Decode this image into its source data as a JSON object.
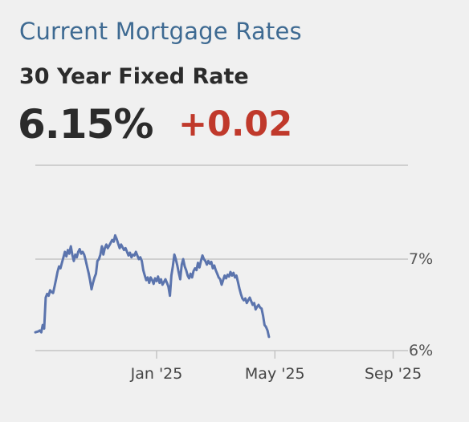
{
  "header": {
    "title": "Current Mortgage Rates",
    "product": "30 Year Fixed Rate",
    "rate": "6.15%",
    "change": "+0.02"
  },
  "colors": {
    "title": "#3e6a92",
    "line": "#5b74ad",
    "change": "#c0392b",
    "grid": "#c4c4c4",
    "background": "#f0f0f0"
  },
  "chart_data": {
    "type": "line",
    "title": "",
    "xlabel": "",
    "ylabel": "",
    "ylim": [
      5.9,
      7.9
    ],
    "grid": true,
    "y_ticks": [
      {
        "value": 6,
        "label": "6%"
      },
      {
        "value": 7,
        "label": "7%"
      }
    ],
    "x_ticks": [
      {
        "x": 2,
        "label": "Jan '25"
      },
      {
        "x": 6,
        "label": "May '25"
      },
      {
        "x": 10,
        "label": "Sep '25"
      }
    ],
    "series": [
      {
        "points": [
          [
            -2.1,
            6.2
          ],
          [
            -2.0,
            6.21
          ],
          [
            -1.95,
            6.22
          ],
          [
            -1.9,
            6.2
          ],
          [
            -1.85,
            6.28
          ],
          [
            -1.8,
            6.24
          ],
          [
            -1.75,
            6.58
          ],
          [
            -1.7,
            6.62
          ],
          [
            -1.65,
            6.6
          ],
          [
            -1.6,
            6.66
          ],
          [
            -1.55,
            6.64
          ],
          [
            -1.5,
            6.63
          ],
          [
            -1.45,
            6.7
          ],
          [
            -1.4,
            6.78
          ],
          [
            -1.35,
            6.86
          ],
          [
            -1.3,
            6.92
          ],
          [
            -1.25,
            6.9
          ],
          [
            -1.2,
            6.96
          ],
          [
            -1.15,
            7.02
          ],
          [
            -1.1,
            7.08
          ],
          [
            -1.05,
            7.03
          ],
          [
            -1.0,
            7.1
          ],
          [
            -0.95,
            7.06
          ],
          [
            -0.9,
            7.14
          ],
          [
            -0.85,
            7.05
          ],
          [
            -0.8,
            6.98
          ],
          [
            -0.75,
            7.05
          ],
          [
            -0.7,
            7.02
          ],
          [
            -0.65,
            7.08
          ],
          [
            -0.6,
            7.11
          ],
          [
            -0.55,
            7.06
          ],
          [
            -0.5,
            7.08
          ],
          [
            -0.45,
            7.05
          ],
          [
            -0.4,
            6.99
          ],
          [
            -0.35,
            6.92
          ],
          [
            -0.3,
            6.85
          ],
          [
            -0.25,
            6.77
          ],
          [
            -0.2,
            6.67
          ],
          [
            -0.15,
            6.74
          ],
          [
            -0.1,
            6.8
          ],
          [
            -0.05,
            6.84
          ],
          [
            0.0,
            6.98
          ],
          [
            0.05,
            7.0
          ],
          [
            0.1,
            7.05
          ],
          [
            0.15,
            7.14
          ],
          [
            0.2,
            7.05
          ],
          [
            0.25,
            7.12
          ],
          [
            0.3,
            7.16
          ],
          [
            0.35,
            7.12
          ],
          [
            0.4,
            7.15
          ],
          [
            0.45,
            7.18
          ],
          [
            0.5,
            7.21
          ],
          [
            0.55,
            7.19
          ],
          [
            0.6,
            7.26
          ],
          [
            0.65,
            7.22
          ],
          [
            0.7,
            7.17
          ],
          [
            0.75,
            7.12
          ],
          [
            0.8,
            7.16
          ],
          [
            0.85,
            7.13
          ],
          [
            0.9,
            7.1
          ],
          [
            0.95,
            7.12
          ],
          [
            1.0,
            7.08
          ],
          [
            1.05,
            7.04
          ],
          [
            1.1,
            7.07
          ],
          [
            1.15,
            7.02
          ],
          [
            1.2,
            7.05
          ],
          [
            1.25,
            7.04
          ],
          [
            1.3,
            7.08
          ],
          [
            1.35,
            7.04
          ],
          [
            1.4,
            7.0
          ],
          [
            1.45,
            7.02
          ],
          [
            1.5,
            6.98
          ],
          [
            1.55,
            6.88
          ],
          [
            1.6,
            6.82
          ],
          [
            1.65,
            6.77
          ],
          [
            1.7,
            6.8
          ],
          [
            1.75,
            6.74
          ],
          [
            1.8,
            6.8
          ],
          [
            1.85,
            6.77
          ],
          [
            1.9,
            6.73
          ],
          [
            1.95,
            6.79
          ],
          [
            2.0,
            6.76
          ],
          [
            2.05,
            6.81
          ],
          [
            2.1,
            6.74
          ],
          [
            2.15,
            6.78
          ],
          [
            2.2,
            6.72
          ],
          [
            2.25,
            6.75
          ],
          [
            2.3,
            6.78
          ],
          [
            2.35,
            6.74
          ],
          [
            2.4,
            6.7
          ],
          [
            2.45,
            6.6
          ],
          [
            2.5,
            6.82
          ],
          [
            2.55,
            6.92
          ],
          [
            2.6,
            7.05
          ],
          [
            2.65,
            7.0
          ],
          [
            2.7,
            6.93
          ],
          [
            2.75,
            6.85
          ],
          [
            2.8,
            6.78
          ],
          [
            2.85,
            6.94
          ],
          [
            2.9,
            7.0
          ],
          [
            2.95,
            6.92
          ],
          [
            3.0,
            6.88
          ],
          [
            3.05,
            6.82
          ],
          [
            3.1,
            6.79
          ],
          [
            3.15,
            6.84
          ],
          [
            3.2,
            6.8
          ],
          [
            3.25,
            6.87
          ],
          [
            3.3,
            6.9
          ],
          [
            3.35,
            6.88
          ],
          [
            3.4,
            6.96
          ],
          [
            3.45,
            6.91
          ],
          [
            3.5,
            6.98
          ],
          [
            3.55,
            7.04
          ],
          [
            3.6,
            7.0
          ],
          [
            3.65,
            6.98
          ],
          [
            3.7,
            6.94
          ],
          [
            3.75,
            6.98
          ],
          [
            3.8,
            6.95
          ],
          [
            3.85,
            6.97
          ],
          [
            3.9,
            6.9
          ],
          [
            3.95,
            6.93
          ],
          [
            4.0,
            6.88
          ],
          [
            4.05,
            6.84
          ],
          [
            4.1,
            6.8
          ],
          [
            4.15,
            6.78
          ],
          [
            4.2,
            6.72
          ],
          [
            4.25,
            6.77
          ],
          [
            4.3,
            6.82
          ],
          [
            4.35,
            6.79
          ],
          [
            4.4,
            6.83
          ],
          [
            4.45,
            6.81
          ],
          [
            4.5,
            6.86
          ],
          [
            4.55,
            6.82
          ],
          [
            4.6,
            6.85
          ],
          [
            4.65,
            6.8
          ],
          [
            4.7,
            6.82
          ],
          [
            4.75,
            6.75
          ],
          [
            4.8,
            6.68
          ],
          [
            4.85,
            6.62
          ],
          [
            4.9,
            6.57
          ],
          [
            4.95,
            6.55
          ],
          [
            5.0,
            6.57
          ],
          [
            5.05,
            6.52
          ],
          [
            5.1,
            6.55
          ],
          [
            5.15,
            6.58
          ],
          [
            5.2,
            6.54
          ],
          [
            5.25,
            6.5
          ],
          [
            5.3,
            6.52
          ],
          [
            5.35,
            6.45
          ],
          [
            5.4,
            6.48
          ],
          [
            5.45,
            6.5
          ],
          [
            5.5,
            6.47
          ],
          [
            5.55,
            6.46
          ],
          [
            5.6,
            6.38
          ],
          [
            5.65,
            6.28
          ],
          [
            5.7,
            6.26
          ],
          [
            5.75,
            6.22
          ],
          [
            5.8,
            6.15
          ]
        ]
      }
    ]
  }
}
